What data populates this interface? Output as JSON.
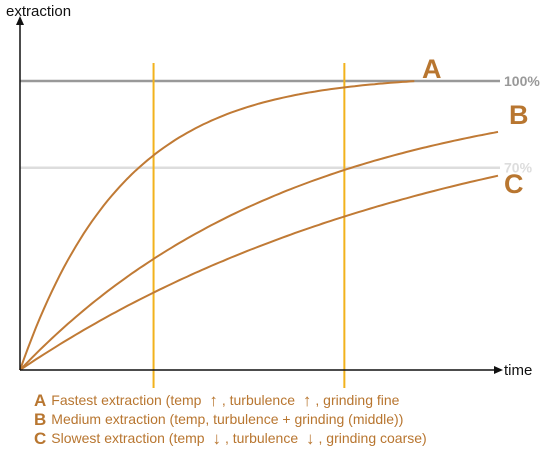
{
  "chart_data": {
    "type": "line",
    "xlabel": "time",
    "ylabel": "extraction",
    "series": [
      {
        "name": "A",
        "note": "Fastest extraction",
        "rate": 3.0
      },
      {
        "name": "B",
        "note": "Medium extraction",
        "rate": 1.12
      },
      {
        "name": "C",
        "note": "Slowest extraction",
        "rate": 0.72
      }
    ],
    "reference_lines": [
      {
        "value": 100,
        "label": "100%",
        "color": "#999999"
      },
      {
        "value": 70,
        "label": "70%",
        "color": "#dddddd"
      }
    ],
    "vertical_markers": [
      {
        "x": 0.28
      },
      {
        "x": 0.68
      }
    ],
    "grid": false,
    "colors": {
      "curve": "#c07a35",
      "marker": "#f2b21c",
      "axis": "#111111",
      "letters": "#b87630"
    }
  },
  "legend": [
    {
      "letter": "A",
      "parts": [
        "Fastest extraction (temp ",
        "up-arrow",
        ", turbulence ",
        "up-arrow",
        ", grinding fine"
      ]
    },
    {
      "letter": "B",
      "parts": [
        "Medium extraction (temp, turbulence + grinding (middle))"
      ]
    },
    {
      "letter": "C",
      "parts": [
        "Slowest extraction (temp ",
        "down-arrow",
        ", turbulence ",
        "down-arrow",
        ", grinding coarse)"
      ]
    }
  ]
}
